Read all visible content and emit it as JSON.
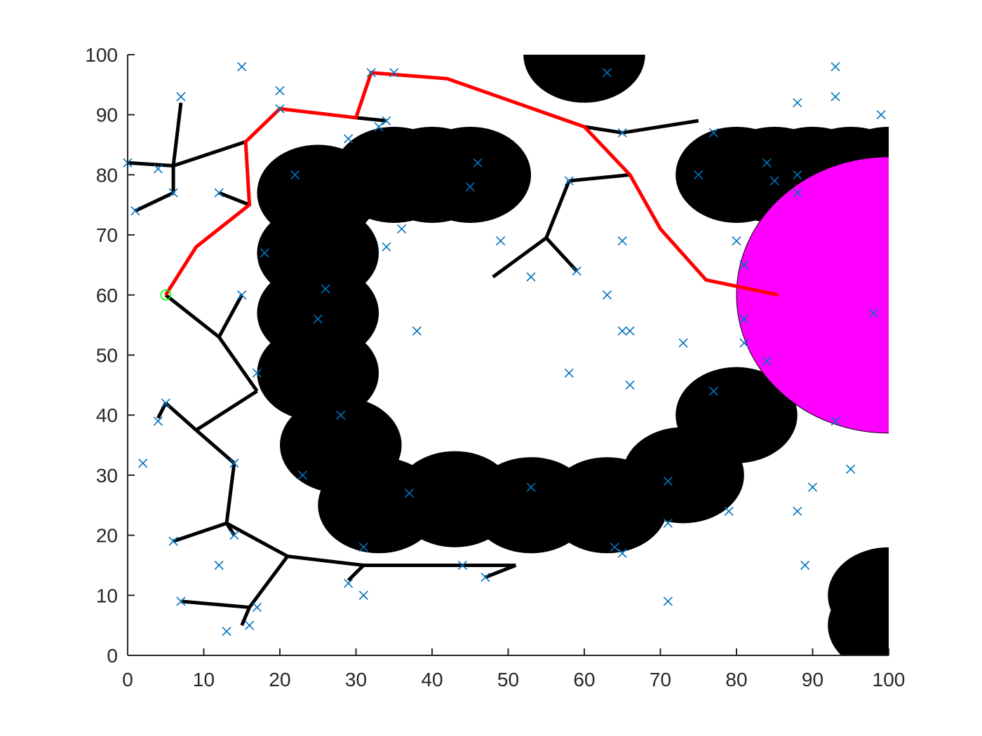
{
  "chart_data": {
    "type": "scatter",
    "title": "",
    "xlabel": "",
    "ylabel": "",
    "xlim": [
      0,
      100
    ],
    "ylim": [
      0,
      100
    ],
    "xticks": [
      "0",
      "10",
      "20",
      "30",
      "40",
      "50",
      "60",
      "70",
      "80",
      "90",
      "100"
    ],
    "yticks": [
      "0",
      "10",
      "20",
      "30",
      "40",
      "50",
      "60",
      "70",
      "80",
      "90",
      "100"
    ],
    "grid": false,
    "colors": {
      "samples": "#0072BD",
      "obstacles": "#000000",
      "goal_region": "#FF00FF",
      "path": "#FF0000",
      "tree": "#000000",
      "start": "#00FF00"
    },
    "start": {
      "x": 5,
      "y": 60
    },
    "goal_region": {
      "x": 100,
      "y": 60,
      "rx": 20,
      "ry": 23
    },
    "obstacles": [
      {
        "x": 25,
        "y": 77,
        "r": 8
      },
      {
        "x": 25,
        "y": 67,
        "r": 8
      },
      {
        "x": 25,
        "y": 57,
        "r": 8
      },
      {
        "x": 25,
        "y": 47,
        "r": 8
      },
      {
        "x": 28,
        "y": 35,
        "r": 8
      },
      {
        "x": 33,
        "y": 25,
        "r": 8
      },
      {
        "x": 35,
        "y": 80,
        "r": 8
      },
      {
        "x": 40,
        "y": 80,
        "r": 8
      },
      {
        "x": 45,
        "y": 80,
        "r": 8
      },
      {
        "x": 43,
        "y": 26,
        "r": 8
      },
      {
        "x": 53,
        "y": 25,
        "r": 8
      },
      {
        "x": 63,
        "y": 25,
        "r": 8
      },
      {
        "x": 73,
        "y": 30,
        "r": 8
      },
      {
        "x": 80,
        "y": 40,
        "r": 8
      },
      {
        "x": 60,
        "y": 100,
        "r": 8
      },
      {
        "x": 80,
        "y": 80,
        "r": 8
      },
      {
        "x": 85,
        "y": 80,
        "r": 8
      },
      {
        "x": 90,
        "y": 80,
        "r": 8
      },
      {
        "x": 95,
        "y": 80,
        "r": 8
      },
      {
        "x": 100,
        "y": 80,
        "r": 8
      },
      {
        "x": 100,
        "y": 10,
        "r": 8
      },
      {
        "x": 100,
        "y": 5,
        "r": 8
      }
    ],
    "path": [
      [
        5,
        60
      ],
      [
        9,
        68
      ],
      [
        16,
        75
      ],
      [
        15.5,
        85.5
      ],
      [
        20,
        91
      ],
      [
        30,
        89.5
      ],
      [
        32,
        97
      ],
      [
        42,
        96
      ],
      [
        51,
        92
      ],
      [
        60,
        88
      ],
      [
        66,
        80
      ],
      [
        70,
        71
      ],
      [
        76,
        62.5
      ],
      [
        85.5,
        60
      ]
    ],
    "tree_edges": [
      [
        [
          0,
          82
        ],
        [
          6,
          81.5
        ]
      ],
      [
        [
          6,
          81.5
        ],
        [
          7,
          92
        ]
      ],
      [
        [
          6,
          81.5
        ],
        [
          15.5,
          85.5
        ]
      ],
      [
        [
          6,
          81.5
        ],
        [
          6,
          77
        ]
      ],
      [
        [
          6,
          77
        ],
        [
          1,
          74
        ]
      ],
      [
        [
          12,
          77
        ],
        [
          16,
          75
        ]
      ],
      [
        [
          30,
          89.5
        ],
        [
          34,
          89
        ]
      ],
      [
        [
          5,
          60
        ],
        [
          12,
          53
        ]
      ],
      [
        [
          12,
          53
        ],
        [
          15,
          60
        ]
      ],
      [
        [
          12,
          53
        ],
        [
          17,
          44
        ]
      ],
      [
        [
          17,
          44
        ],
        [
          9,
          37.5
        ]
      ],
      [
        [
          9,
          37.5
        ],
        [
          5,
          42
        ]
      ],
      [
        [
          5,
          42
        ],
        [
          4,
          39.5
        ]
      ],
      [
        [
          9,
          37.5
        ],
        [
          14,
          32
        ]
      ],
      [
        [
          14,
          32
        ],
        [
          13,
          22
        ]
      ],
      [
        [
          13,
          22
        ],
        [
          6,
          19
        ]
      ],
      [
        [
          13,
          22
        ],
        [
          14,
          20
        ]
      ],
      [
        [
          13,
          22
        ],
        [
          21,
          16.5
        ]
      ],
      [
        [
          21,
          16.5
        ],
        [
          31,
          15
        ]
      ],
      [
        [
          31,
          15
        ],
        [
          51,
          15
        ]
      ],
      [
        [
          51,
          15
        ],
        [
          47,
          13
        ]
      ],
      [
        [
          31,
          15
        ],
        [
          29,
          12.5
        ]
      ],
      [
        [
          21,
          16.5
        ],
        [
          16,
          8
        ]
      ],
      [
        [
          16,
          8
        ],
        [
          7,
          9
        ]
      ],
      [
        [
          16,
          8
        ],
        [
          15,
          5
        ]
      ],
      [
        [
          60,
          88
        ],
        [
          65,
          87
        ]
      ],
      [
        [
          65,
          87
        ],
        [
          75,
          89
        ]
      ],
      [
        [
          66,
          80
        ],
        [
          58,
          79
        ]
      ],
      [
        [
          58,
          79
        ],
        [
          55,
          69.5
        ]
      ],
      [
        [
          55,
          69.5
        ],
        [
          48,
          63
        ]
      ],
      [
        [
          55,
          69.5
        ],
        [
          59,
          64
        ]
      ]
    ],
    "samples": [
      [
        15,
        98
      ],
      [
        7,
        93
      ],
      [
        20,
        94
      ],
      [
        0,
        82
      ],
      [
        4,
        81
      ],
      [
        6,
        77
      ],
      [
        12,
        77
      ],
      [
        1,
        74
      ],
      [
        2,
        32
      ],
      [
        4,
        39
      ],
      [
        5,
        42
      ],
      [
        6,
        19
      ],
      [
        7,
        9
      ],
      [
        12,
        15
      ],
      [
        13,
        4
      ],
      [
        14,
        20
      ],
      [
        14,
        32
      ],
      [
        15,
        60
      ],
      [
        16,
        5
      ],
      [
        17,
        8
      ],
      [
        17,
        47
      ],
      [
        18,
        67
      ],
      [
        22,
        80
      ],
      [
        20,
        91
      ],
      [
        23,
        30
      ],
      [
        25,
        56
      ],
      [
        26,
        61
      ],
      [
        28,
        40
      ],
      [
        29,
        86
      ],
      [
        29,
        12
      ],
      [
        31,
        10
      ],
      [
        31,
        18
      ],
      [
        32,
        97
      ],
      [
        33,
        88
      ],
      [
        34,
        89
      ],
      [
        34,
        68
      ],
      [
        35,
        97
      ],
      [
        36,
        71
      ],
      [
        37,
        27
      ],
      [
        38,
        54
      ],
      [
        44,
        15
      ],
      [
        45,
        78
      ],
      [
        46,
        82
      ],
      [
        47,
        13
      ],
      [
        49,
        69
      ],
      [
        53,
        63
      ],
      [
        53,
        28
      ],
      [
        58,
        79
      ],
      [
        58,
        47
      ],
      [
        59,
        64
      ],
      [
        63,
        97
      ],
      [
        63,
        60
      ],
      [
        64,
        18
      ],
      [
        65,
        87
      ],
      [
        65,
        69
      ],
      [
        65,
        54
      ],
      [
        65,
        17
      ],
      [
        66,
        54
      ],
      [
        66,
        45
      ],
      [
        71,
        29
      ],
      [
        71,
        22
      ],
      [
        71,
        9
      ],
      [
        73,
        52
      ],
      [
        75,
        80
      ],
      [
        77,
        87
      ],
      [
        77,
        44
      ],
      [
        79,
        24
      ],
      [
        80,
        69
      ],
      [
        81,
        65
      ],
      [
        81,
        56
      ],
      [
        81,
        52
      ],
      [
        84,
        82
      ],
      [
        84,
        49
      ],
      [
        85,
        79
      ],
      [
        88,
        92
      ],
      [
        88,
        80
      ],
      [
        88,
        77
      ],
      [
        88,
        24
      ],
      [
        89,
        15
      ],
      [
        90,
        28
      ],
      [
        93,
        98
      ],
      [
        93,
        93
      ],
      [
        93,
        39
      ],
      [
        95,
        31
      ],
      [
        98,
        57
      ],
      [
        99,
        90
      ]
    ]
  }
}
